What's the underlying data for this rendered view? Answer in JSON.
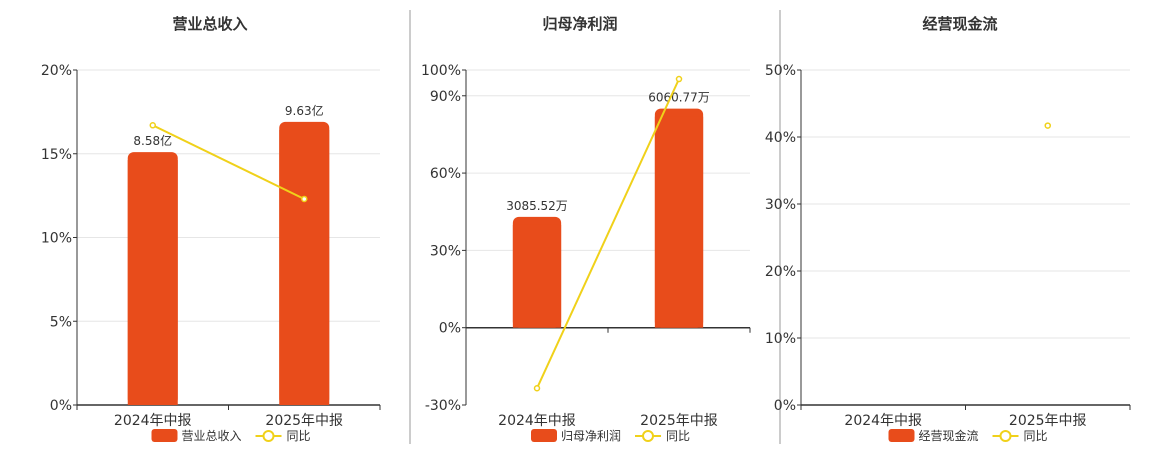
{
  "colors": {
    "bar": "#e84c1b",
    "line": "#f0d11a",
    "grid": "#e6e6e6",
    "axis": "#333333",
    "separator": "#999999",
    "text": "#333333"
  },
  "chart_data": [
    {
      "type": "bar",
      "title": "营业总收入",
      "categories": [
        "2024年中报",
        "2025年中报"
      ],
      "ylim": [
        0,
        20
      ],
      "yticks": [
        0,
        5,
        10,
        15,
        20
      ],
      "ytick_labels": [
        "0%",
        "5%",
        "10%",
        "15%",
        "20%"
      ],
      "bar_values": [
        15.1,
        16.9
      ],
      "bar_labels": [
        "8.58亿",
        "9.63亿"
      ],
      "line_values": [
        16.7,
        12.3
      ],
      "legend": {
        "bar": "营业总收入",
        "line": "同比"
      },
      "grid": true,
      "legend_position": "bottom"
    },
    {
      "type": "bar",
      "title": "归母净利润",
      "categories": [
        "2024年中报",
        "2025年中报"
      ],
      "ylim": [
        -30,
        100
      ],
      "yticks": [
        -30,
        0,
        30,
        60,
        90,
        100
      ],
      "ytick_labels": [
        "-30%",
        "0%",
        "30%",
        "60%",
        "90%",
        "100%"
      ],
      "bar_values": [
        43,
        85
      ],
      "bar_labels": [
        "3085.52万",
        "6060.77万"
      ],
      "line_values": [
        -23.5,
        96.5
      ],
      "legend": {
        "bar": "归母净利润",
        "line": "同比"
      },
      "grid": true,
      "legend_position": "bottom"
    },
    {
      "type": "bar",
      "title": "经营现金流",
      "categories": [
        "2024年中报",
        "2025年中报"
      ],
      "ylim": [
        0,
        50
      ],
      "yticks": [
        0,
        10,
        20,
        30,
        40,
        50
      ],
      "ytick_labels": [
        "0%",
        "10%",
        "20%",
        "30%",
        "40%",
        "50%"
      ],
      "bar_values": [
        null,
        null
      ],
      "bar_labels": [
        "",
        ""
      ],
      "line_values": [
        null,
        41.7
      ],
      "legend": {
        "bar": "经营现金流",
        "line": "同比"
      },
      "grid": true,
      "legend_position": "bottom"
    }
  ]
}
